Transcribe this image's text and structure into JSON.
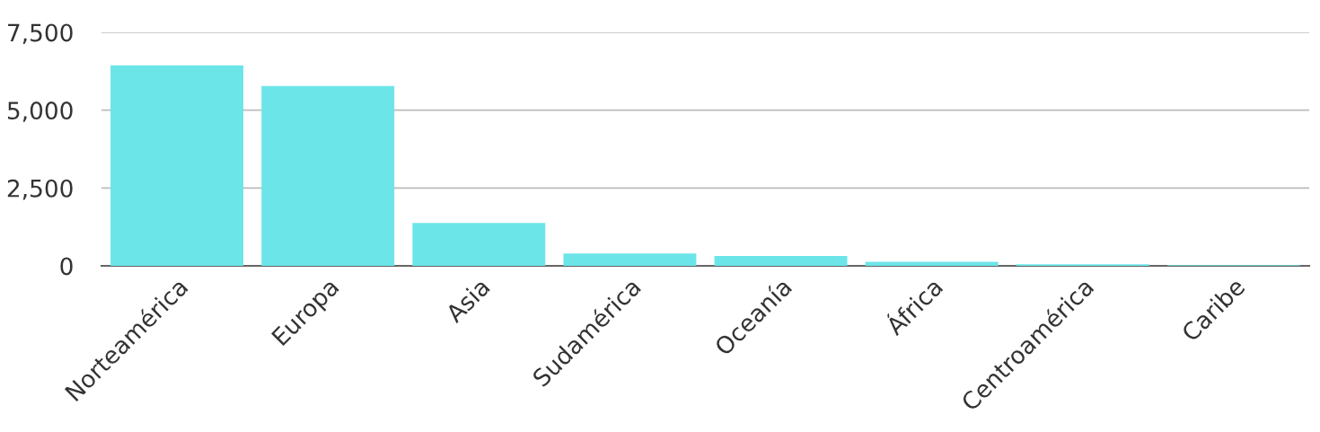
{
  "chart_data": {
    "type": "bar",
    "categories": [
      "Norteamérica",
      "Europa",
      "Asia",
      "Sudamérica",
      "Oceanía",
      "África",
      "Centroamérica",
      "Caribe"
    ],
    "values": [
      6440,
      5780,
      1380,
      400,
      320,
      130,
      50,
      20
    ],
    "color": "#6ce5e8",
    "ylim": [
      0,
      7500
    ],
    "yticks": [
      0,
      {
        "value": 2500,
        "label": "2,500"
      },
      {
        "value": 5000,
        "label": "5,000"
      },
      {
        "value": 7500,
        "label": "7,500"
      }
    ],
    "grid": "y",
    "legend": false
  }
}
